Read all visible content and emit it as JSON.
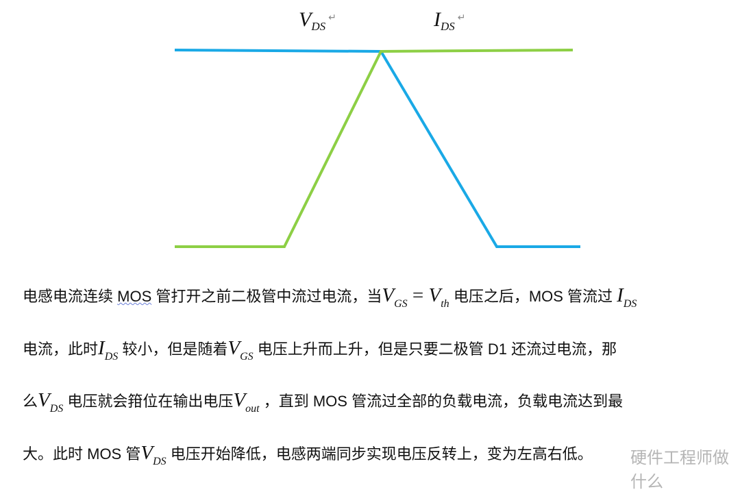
{
  "diagram": {
    "label_vds": {
      "var": "V",
      "sub": "DS"
    },
    "label_ids": {
      "var": "I",
      "sub": "DS"
    },
    "colors": {
      "vds": "#1aa9e6",
      "ids": "#8dcf45"
    },
    "return_mark": "↵"
  },
  "paragraph": {
    "l1a": "电感电流连续 ",
    "l1b": "MOS",
    "l1c": " 管打开之前二极管中流过电流，当",
    "l1d": "电压之后，MOS 管流过",
    "l2a": "电流，此时",
    "l2b": "较小，但是随着",
    "l2c": "电压上升而上升，但是只要二极管 D1 还流过电流，那",
    "l3a": "么",
    "l3b": "电压就会箝位在输出电压",
    "l3c": "，直到 MOS 管流过全部的负载电流，负载电流达到最",
    "l4a": "大。此时 MOS 管",
    "l4b": "电压开始降低，电感两端同步实现电压反转上",
    "l4c": "，变为左高右低。",
    "sym": {
      "V": "V",
      "I": "I",
      "GS": "GS",
      "th": "th",
      "DS": "DS",
      "out": "out",
      "eq": " = "
    }
  },
  "watermark": "硬件工程师做什么"
}
